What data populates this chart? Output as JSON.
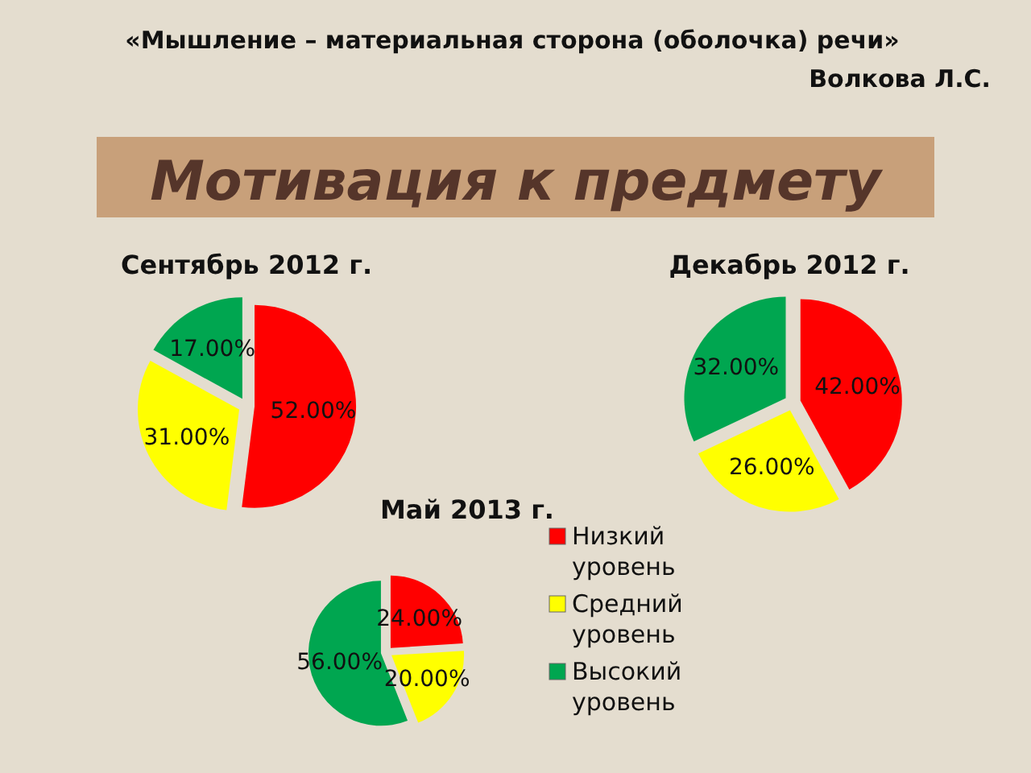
{
  "chart_data": [
    {
      "type": "other",
      "title": "Мотивация к предмету",
      "annotations": [
        "«Мышление – материальная сторона (оболочка) речи»",
        "Волкова Л.С."
      ]
    },
    {
      "type": "pie",
      "title": "Сентябрь 2012 г.",
      "categories": [
        null,
        null,
        null
      ],
      "values": [
        52,
        31,
        17
      ],
      "colors": [
        "#ff0000",
        "#ffff00",
        "#00a650"
      ],
      "value_labels": [
        "52.00%",
        "31.00%",
        "17.00%"
      ]
    },
    {
      "type": "pie",
      "title": "Декабрь 2012 г.",
      "categories": [
        null,
        null,
        null
      ],
      "values": [
        42,
        26,
        32
      ],
      "colors": [
        "#ff0000",
        "#ffff00",
        "#00a650"
      ],
      "value_labels": [
        "42.00%",
        "26.00%",
        "32.00%"
      ]
    },
    {
      "type": "pie",
      "title": "Май 2013 г.",
      "categories": [
        "Низкий уровень",
        "Средний уровень",
        "Высокий уровень"
      ],
      "values": [
        24,
        20,
        56
      ],
      "colors": [
        "#ff0000",
        "#ffff00",
        "#00a650"
      ],
      "value_labels": [
        "24.00%",
        "20.00%",
        "56.00%"
      ],
      "legend": "right"
    }
  ]
}
